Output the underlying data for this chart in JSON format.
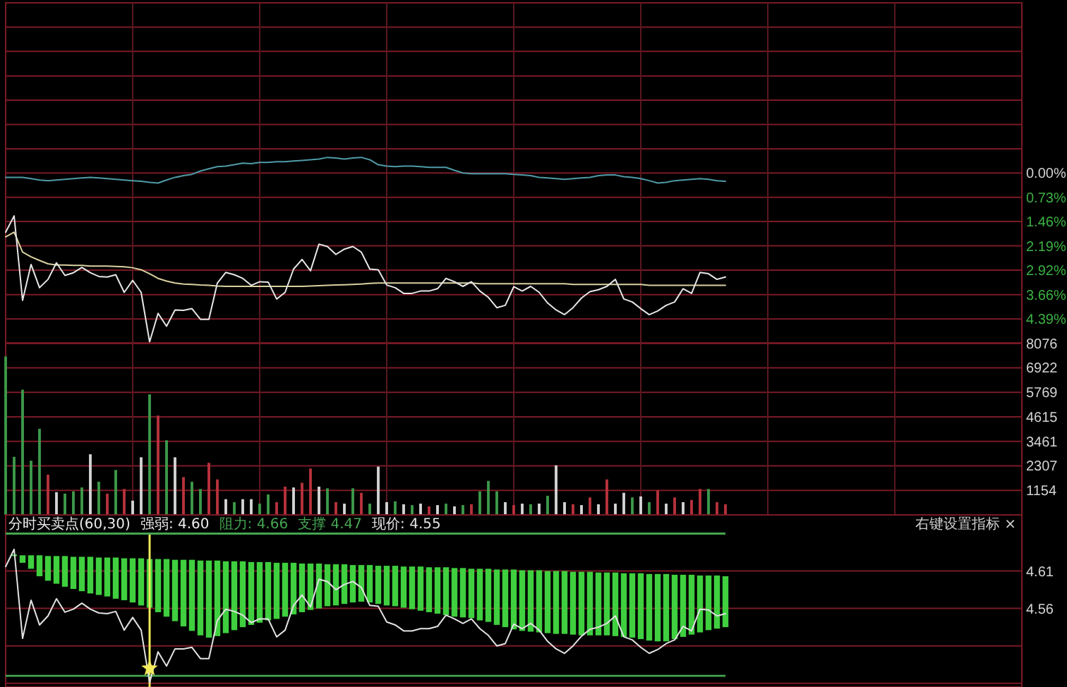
{
  "chart_data": [
    {
      "type": "line",
      "categories": [
        null,
        null,
        null,
        null,
        null,
        null,
        null,
        null,
        null,
        null,
        null,
        null,
        null,
        null,
        null,
        null,
        null,
        null,
        null,
        null,
        null,
        null,
        null,
        null,
        null,
        null,
        null,
        null,
        null,
        null,
        null,
        null,
        null,
        null,
        null,
        null,
        null,
        null,
        null,
        null,
        null,
        null,
        null,
        null,
        null,
        null,
        null,
        null,
        null,
        null,
        null,
        null,
        null,
        null,
        null,
        null,
        null,
        null,
        null,
        null,
        null,
        null,
        null,
        null,
        null,
        null,
        null,
        null,
        null,
        null,
        null,
        null,
        null,
        null,
        null,
        null,
        null,
        null,
        null,
        null,
        null,
        null,
        null,
        null,
        null,
        null,
        null,
        null,
        null,
        null,
        null,
        null,
        null,
        null,
        null,
        null,
        null,
        null,
        null,
        null,
        null,
        null,
        null,
        null,
        null,
        null,
        null,
        null,
        null,
        null,
        null,
        null,
        null,
        null,
        null,
        null,
        null,
        null,
        null,
        null
      ],
      "series": [
        {
          "color": "#4f9ba8",
          "values": [
            -0.13,
            -0.13,
            -0.13,
            -0.17,
            -0.21,
            -0.23,
            -0.21,
            -0.19,
            -0.17,
            -0.15,
            -0.13,
            -0.15,
            -0.17,
            -0.19,
            -0.21,
            -0.23,
            -0.25,
            -0.28,
            -0.3,
            -0.21,
            -0.13,
            -0.08,
            -0.04,
            0.06,
            0.13,
            0.19,
            0.21,
            0.25,
            0.3,
            0.28,
            0.32,
            0.32,
            0.34,
            0.34,
            0.36,
            0.38,
            0.4,
            0.42,
            0.47,
            0.45,
            0.42,
            0.45,
            0.47,
            0.4,
            0.25,
            0.21,
            0.19,
            0.21,
            0.21,
            0.19,
            0.17,
            0.17,
            0.17,
            0.08,
            0,
            -0.02,
            -0.02,
            -0.02,
            -0.02,
            -0.02,
            -0.04,
            -0.06,
            -0.08,
            -0.13,
            -0.15,
            -0.17,
            -0.19,
            -0.17,
            -0.15,
            -0.13,
            -0.08,
            -0.06,
            -0.06,
            -0.11,
            -0.13,
            -0.17,
            -0.23,
            -0.3,
            -0.28,
            -0.23,
            -0.21,
            -0.19,
            -0.17,
            -0.19,
            -0.23,
            -0.25,
            null,
            null,
            null,
            null,
            null,
            null,
            null,
            null,
            null,
            null,
            null,
            null,
            null,
            null,
            null,
            null,
            null,
            null,
            null,
            null,
            null,
            null,
            null,
            null,
            null,
            null,
            null,
            null,
            null,
            null,
            null,
            null,
            null,
            null
          ]
        },
        {
          "color": "#d9d0a0",
          "values": [
            -1.92,
            -1.78,
            -2.38,
            -2.52,
            -2.63,
            -2.73,
            -2.77,
            -2.77,
            -2.78,
            -2.78,
            -2.8,
            -2.8,
            -2.8,
            -2.81,
            -2.82,
            -2.85,
            -2.91,
            -3.03,
            -3.17,
            -3.25,
            -3.31,
            -3.34,
            -3.35,
            -3.37,
            -3.38,
            -3.4,
            -3.41,
            -3.41,
            -3.41,
            -3.41,
            -3.41,
            -3.41,
            -3.41,
            -3.41,
            -3.41,
            -3.41,
            -3.4,
            -3.39,
            -3.38,
            -3.37,
            -3.36,
            -3.35,
            -3.34,
            -3.32,
            -3.31,
            -3.31,
            -3.31,
            -3.31,
            -3.31,
            -3.31,
            -3.31,
            -3.31,
            -3.31,
            -3.31,
            -3.31,
            -3.31,
            -3.33,
            -3.33,
            -3.33,
            -3.33,
            -3.33,
            -3.33,
            -3.33,
            -3.33,
            -3.33,
            -3.33,
            -3.33,
            -3.35,
            -3.35,
            -3.35,
            -3.35,
            -3.35,
            -3.35,
            -3.35,
            -3.35,
            -3.35,
            -3.38,
            -3.38,
            -3.38,
            -3.38,
            -3.38,
            -3.38,
            -3.38,
            -3.38,
            -3.38,
            -3.38,
            null,
            null,
            null,
            null,
            null,
            null,
            null,
            null,
            null,
            null,
            null,
            null,
            null,
            null,
            null,
            null,
            null,
            null,
            null,
            null,
            null,
            null,
            null,
            null,
            null,
            null,
            null,
            null,
            null,
            null,
            null,
            null,
            null,
            null
          ]
        },
        {
          "color": "#e6e6e6",
          "values": [
            -1.78,
            -1.29,
            -3.83,
            -2.75,
            -3.45,
            -3.2,
            -2.7,
            -3.08,
            -3.0,
            -2.84,
            -3.0,
            -3.11,
            -3.13,
            -3.06,
            -3.59,
            -3.23,
            -3.59,
            -5.08,
            -4.22,
            -4.61,
            -4.12,
            -4.13,
            -4.08,
            -4.4,
            -4.4,
            -3.31,
            -2.99,
            -3.06,
            -3.17,
            -3.38,
            -3.27,
            -3.28,
            -3.79,
            -3.59,
            -2.89,
            -2.6,
            -2.94,
            -2.14,
            -2.21,
            -2.45,
            -2.29,
            -2.21,
            -2.38,
            -2.89,
            -2.91,
            -3.37,
            -3.45,
            -3.62,
            -3.62,
            -3.55,
            -3.55,
            -3.48,
            -3.17,
            -3.27,
            -3.41,
            -3.27,
            -3.55,
            -3.74,
            -4.05,
            -3.98,
            -3.42,
            -3.55,
            -3.41,
            -3.59,
            -3.91,
            -4.12,
            -4.26,
            -4.05,
            -3.76,
            -3.57,
            -3.51,
            -3.41,
            -3.2,
            -3.79,
            -3.88,
            -4.08,
            -4.26,
            -4.15,
            -3.98,
            -3.88,
            -3.48,
            -3.62,
            -2.99,
            -3.03,
            -3.2,
            -3.13,
            null,
            null,
            null,
            null,
            null,
            null,
            null,
            null,
            null,
            null,
            null,
            null,
            null,
            null,
            null,
            null,
            null,
            null,
            null,
            null,
            null,
            null,
            null,
            null,
            null,
            null,
            null,
            null,
            null,
            null,
            null,
            null,
            null,
            null
          ]
        }
      ],
      "ylim": [
        -5.12,
        5.12
      ],
      "yticks": [
        {
          "value": 5.12,
          "label": null
        },
        {
          "value": 4.39,
          "label": null
        },
        {
          "value": 3.66,
          "label": null
        },
        {
          "value": 2.92,
          "label": null
        },
        {
          "value": 2.19,
          "label": null
        },
        {
          "value": 1.46,
          "label": null
        },
        {
          "value": 0.73,
          "label": null
        },
        {
          "value": 0,
          "label": "0.00%"
        },
        {
          "value": -0.73,
          "label": "0.73%"
        },
        {
          "value": -1.46,
          "label": "1.46%"
        },
        {
          "value": -2.19,
          "label": "2.19%"
        },
        {
          "value": -2.92,
          "label": "2.92%"
        },
        {
          "value": -3.66,
          "label": "3.66%"
        },
        {
          "value": -4.39,
          "label": "4.39%"
        }
      ],
      "grid": true
    },
    {
      "type": "bar",
      "categories": [
        null,
        null,
        null,
        null,
        null,
        null,
        null,
        null,
        null,
        null,
        null,
        null,
        null,
        null,
        null,
        null,
        null,
        null,
        null,
        null,
        null,
        null,
        null,
        null,
        null,
        null,
        null,
        null,
        null,
        null,
        null,
        null,
        null,
        null,
        null,
        null,
        null,
        null,
        null,
        null,
        null,
        null,
        null,
        null,
        null,
        null,
        null,
        null,
        null,
        null,
        null,
        null,
        null,
        null,
        null,
        null,
        null,
        null,
        null,
        null,
        null,
        null,
        null,
        null,
        null,
        null,
        null,
        null,
        null,
        null,
        null,
        null,
        null,
        null,
        null,
        null,
        null,
        null,
        null,
        null,
        null,
        null,
        null,
        null,
        null,
        null,
        null,
        null,
        null,
        null,
        null,
        null,
        null,
        null,
        null,
        null,
        null,
        null,
        null,
        null,
        null,
        null,
        null,
        null,
        null,
        null,
        null,
        null,
        null,
        null,
        null,
        null,
        null,
        null,
        null,
        null,
        null,
        null,
        null,
        null
      ],
      "values": [
        7450,
        2730,
        5890,
        2550,
        4050,
        1890,
        1070,
        1000,
        1110,
        1290,
        2850,
        1560,
        1000,
        2110,
        1220,
        670,
        2710,
        5670,
        4670,
        3510,
        2710,
        1780,
        1560,
        1220,
        2450,
        1670,
        740,
        600,
        740,
        740,
        530,
        960,
        600,
        1330,
        1290,
        1510,
        2180,
        1330,
        1250,
        600,
        530,
        1250,
        1040,
        530,
        2270,
        600,
        640,
        500,
        460,
        530,
        400,
        460,
        530,
        400,
        460,
        500,
        1110,
        1600,
        1110,
        600,
        460,
        530,
        500,
        530,
        900,
        2330,
        600,
        500,
        460,
        820,
        500,
        1670,
        530,
        1040,
        820,
        870,
        600,
        1150,
        530,
        820,
        600,
        700,
        1220,
        1220,
        600,
        500,
        null,
        null,
        null,
        null,
        null,
        null,
        null,
        null,
        null,
        null,
        null,
        null,
        null,
        null,
        null,
        null,
        null,
        null,
        null,
        null,
        null,
        null,
        null,
        null,
        null,
        null,
        null,
        null,
        null,
        null,
        null,
        null,
        null,
        null
      ],
      "colors": [
        "#3d9a4a",
        "#3d9a4a",
        "#3d9a4a",
        "#3d9a4a",
        "#3d9a4a",
        "#b8323c",
        "#d4d4d4",
        "#3d9a4a",
        "#3d9a4a",
        "#3d9a4a",
        "#d4d4d4",
        "#3d9a4a",
        "#b8323c",
        "#3d9a4a",
        "#b8323c",
        "#d4d4d4",
        "#d4d4d4",
        "#3d9a4a",
        "#b8323c",
        "#3d9a4a",
        "#d4d4d4",
        "#b8323c",
        "#3d9a4a",
        "#3d9a4a",
        "#b8323c",
        "#b8323c",
        "#d4d4d4",
        "#3d9a4a",
        "#d4d4d4",
        "#d4d4d4",
        "#3d9a4a",
        "#3d9a4a",
        "#b8323c",
        "#b8323c",
        "#d4d4d4",
        "#b8323c",
        "#b8323c",
        "#d4d4d4",
        "#3d9a4a",
        "#b8323c",
        "#d4d4d4",
        "#3d9a4a",
        "#b8323c",
        "#3d9a4a",
        "#d4d4d4",
        "#d4d4d4",
        "#3d9a4a",
        "#d4d4d4",
        "#3d9a4a",
        "#d4d4d4",
        "#b8323c",
        "#d4d4d4",
        "#3d9a4a",
        "#d4d4d4",
        "#3d9a4a",
        "#b8323c",
        "#3d9a4a",
        "#3d9a4a",
        "#3d9a4a",
        "#d4d4d4",
        "#b8323c",
        "#d4d4d4",
        "#3d9a4a",
        "#d4d4d4",
        "#3d9a4a",
        "#d4d4d4",
        "#d4d4d4",
        "#b8323c",
        "#d4d4d4",
        "#b8323c",
        "#d4d4d4",
        "#b8323c",
        "#d4d4d4",
        "#d4d4d4",
        "#3d9a4a",
        "#d4d4d4",
        "#3d9a4a",
        "#b8323c",
        "#d4d4d4",
        "#b8323c",
        "#d4d4d4",
        "#b8323c",
        "#b8323c",
        "#3d9a4a",
        "#b8323c",
        "#b8323c",
        null,
        null,
        null,
        null,
        null,
        null,
        null,
        null,
        null,
        null,
        null,
        null,
        null,
        null,
        null,
        null,
        null,
        null,
        null,
        null,
        null,
        null,
        null,
        null,
        null,
        null,
        null,
        null,
        null,
        null,
        null,
        null,
        null,
        null
      ],
      "ylim": [
        0,
        8076
      ],
      "yticks": [
        8076,
        6922,
        5769,
        4615,
        3461,
        2307,
        1154
      ],
      "grid": true
    },
    {
      "type": "bar",
      "title": "分时买卖点(60,30)",
      "subtitle": "右键设置指标 ×",
      "annotations": [
        "强弱: 4.60"
      ],
      "categories": [
        null,
        null,
        null,
        null,
        null,
        null,
        null,
        null,
        null,
        null,
        null,
        null,
        null,
        null,
        null,
        null,
        null,
        null,
        null,
        null,
        null,
        null,
        null,
        null,
        null,
        null,
        null,
        null,
        null,
        null,
        null,
        null,
        null,
        null,
        null,
        null,
        null,
        null,
        null,
        null,
        null,
        null,
        null,
        null,
        null,
        null,
        null,
        null,
        null,
        null,
        null,
        null,
        null,
        null,
        null,
        null,
        null,
        null,
        null,
        null,
        null,
        null,
        null,
        null,
        null,
        null,
        null,
        null,
        null,
        null,
        null,
        null,
        null,
        null,
        null,
        null,
        null,
        null,
        null,
        null,
        null,
        null,
        null,
        null,
        null,
        null,
        null,
        null,
        null,
        null,
        null,
        null,
        null,
        null,
        null,
        null,
        null,
        null,
        null,
        null,
        null,
        null,
        null,
        null,
        null,
        null,
        null,
        null,
        null,
        null,
        null,
        null,
        null,
        null,
        null,
        null,
        null,
        null,
        null,
        null
      ],
      "series": [
        {
          "color": "#3fcf3f",
          "base": [
            null,
            4.63,
            4.621,
            4.613,
            4.603,
            4.597,
            4.593,
            4.589,
            4.586,
            4.583,
            4.58,
            4.578,
            4.576,
            4.573,
            4.571,
            4.568,
            4.564,
            4.561,
            4.555,
            4.549,
            4.543,
            4.536,
            4.53,
            4.524,
            4.521,
            4.523,
            4.527,
            4.531,
            4.535,
            4.538,
            4.541,
            4.544,
            4.546,
            4.549,
            4.552,
            4.555,
            4.558,
            4.56,
            4.563,
            4.564,
            4.566,
            4.568,
            4.569,
            4.568,
            4.566,
            4.564,
            4.563,
            4.561,
            4.559,
            4.557,
            4.555,
            4.553,
            4.551,
            4.549,
            4.548,
            4.547,
            4.544,
            4.542,
            4.538,
            4.535,
            4.532,
            4.53,
            4.529,
            4.528,
            4.527,
            4.526,
            4.526,
            4.525,
            4.524,
            4.524,
            4.524,
            4.524,
            4.523,
            4.522,
            4.521,
            4.519,
            4.517,
            4.516,
            4.516,
            4.519,
            4.522,
            4.525,
            4.528,
            4.531,
            4.533,
            4.535,
            null,
            null,
            null,
            null,
            null,
            null,
            null,
            null,
            null,
            null,
            null,
            null,
            null,
            null,
            null,
            null,
            null,
            null,
            null,
            null,
            null,
            null,
            null,
            null,
            null,
            null,
            null,
            null,
            null,
            null,
            null,
            null,
            null,
            null
          ],
          "values": [
            null,
            0.002,
            0.01,
            0.018,
            0.028,
            0.033,
            0.037,
            0.041,
            0.043,
            0.046,
            0.049,
            0.05,
            0.052,
            0.055,
            0.056,
            0.059,
            0.063,
            0.065,
            0.071,
            0.077,
            0.082,
            0.089,
            0.095,
            0.1,
            0.103,
            0.101,
            0.096,
            0.092,
            0.088,
            0.084,
            0.081,
            0.078,
            0.075,
            0.072,
            0.069,
            0.065,
            0.062,
            0.06,
            0.056,
            0.055,
            0.053,
            0.05,
            0.049,
            0.05,
            0.051,
            0.053,
            0.054,
            0.055,
            0.057,
            0.059,
            0.06,
            0.062,
            0.064,
            0.065,
            0.066,
            0.066,
            0.069,
            0.071,
            0.074,
            0.077,
            0.08,
            0.081,
            0.082,
            0.083,
            0.083,
            0.084,
            0.084,
            0.084,
            0.085,
            0.085,
            0.084,
            0.084,
            0.085,
            0.085,
            0.086,
            0.088,
            0.089,
            0.09,
            0.09,
            0.086,
            0.083,
            0.08,
            0.076,
            0.073,
            0.071,
            0.068,
            null,
            null,
            null,
            null,
            null,
            null,
            null,
            null,
            null,
            null,
            null,
            null,
            null,
            null,
            null,
            null,
            null,
            null,
            null,
            null,
            null,
            null,
            null,
            null,
            null,
            null,
            null,
            null,
            null,
            null,
            null,
            null,
            null,
            null
          ]
        },
        {
          "color": "#f2ea5a",
          "base": [
            null,
            null,
            null,
            null,
            null,
            null,
            null,
            null,
            null,
            null,
            null,
            null,
            null,
            null,
            null,
            null,
            null,
            4.455,
            null,
            null,
            null,
            null,
            null,
            null,
            null,
            null,
            null,
            null,
            null,
            null,
            null,
            null,
            null,
            null,
            null,
            null,
            null,
            null,
            null,
            null,
            null,
            null,
            null,
            null,
            null,
            null,
            null,
            null,
            null,
            null,
            null,
            null,
            null,
            null,
            null,
            null,
            null,
            null,
            null,
            null,
            null,
            null,
            null,
            null,
            null,
            null,
            null,
            null,
            null,
            null,
            null,
            null,
            null,
            null,
            null,
            null,
            null,
            null,
            null,
            null,
            null,
            null,
            null,
            null,
            null,
            null,
            null,
            null,
            null,
            null,
            null,
            null,
            null,
            null,
            null,
            null,
            null,
            null,
            null,
            null,
            null,
            null,
            null,
            null,
            null,
            null,
            null,
            null,
            null,
            null,
            null,
            null,
            null,
            null,
            null,
            null,
            null,
            null,
            null,
            null
          ],
          "values": [
            null,
            null,
            null,
            null,
            null,
            null,
            null,
            null,
            null,
            null,
            null,
            null,
            null,
            null,
            null,
            null,
            null,
            0.205,
            null,
            null,
            null,
            null,
            null,
            null,
            null,
            null,
            null,
            null,
            null,
            null,
            null,
            null,
            null,
            null,
            null,
            null,
            null,
            null,
            null,
            null,
            null,
            null,
            null,
            null,
            null,
            null,
            null,
            null,
            null,
            null,
            null,
            null,
            null,
            null,
            null,
            null,
            null,
            null,
            null,
            null,
            null,
            null,
            null,
            null,
            null,
            null,
            null,
            null,
            null,
            null,
            null,
            null,
            null,
            null,
            null,
            null,
            null,
            null,
            null,
            null,
            null,
            null,
            null,
            null,
            null,
            null,
            null,
            null,
            null,
            null,
            null,
            null,
            null,
            null,
            null,
            null,
            null,
            null,
            null,
            null,
            null,
            null,
            null,
            null,
            null,
            null,
            null,
            null,
            null,
            null,
            null,
            null,
            null,
            null,
            null,
            null,
            null,
            null,
            null,
            null
          ]
        },
        {
          "type": "line",
          "name": "现价: 4.55",
          "color": "#e2e2e2",
          "values": [
            4.616,
            4.639,
            4.52,
            4.571,
            4.538,
            4.55,
            4.573,
            4.555,
            4.559,
            4.567,
            4.559,
            4.554,
            4.553,
            4.556,
            4.531,
            4.548,
            4.531,
            4.461,
            4.502,
            4.483,
            4.506,
            4.506,
            4.508,
            4.493,
            4.493,
            4.544,
            4.559,
            4.556,
            4.551,
            4.541,
            4.546,
            4.546,
            4.522,
            4.531,
            4.564,
            4.578,
            4.562,
            4.599,
            4.596,
            4.585,
            4.592,
            4.596,
            4.588,
            4.564,
            4.563,
            4.542,
            4.538,
            4.53,
            4.53,
            4.533,
            4.533,
            4.536,
            4.551,
            4.546,
            4.54,
            4.546,
            4.533,
            4.524,
            4.51,
            4.513,
            4.539,
            4.533,
            4.54,
            4.531,
            4.516,
            4.506,
            4.5,
            4.51,
            4.523,
            4.532,
            4.535,
            4.54,
            4.55,
            4.522,
            4.518,
            4.508,
            4.5,
            4.505,
            4.513,
            4.518,
            4.536,
            4.53,
            4.559,
            4.558,
            4.55,
            4.553,
            null,
            null,
            null,
            null,
            null,
            null,
            null,
            null,
            null,
            null,
            null,
            null,
            null,
            null,
            null,
            null,
            null,
            null,
            null,
            null,
            null,
            null,
            null,
            null,
            null,
            null,
            null,
            null,
            null,
            null,
            null,
            null,
            null,
            null
          ]
        },
        {
          "type": "scatter",
          "marker": "star",
          "color": "#f2ea5a",
          "values": [
            null,
            null,
            null,
            null,
            null,
            null,
            null,
            null,
            null,
            null,
            null,
            null,
            null,
            null,
            null,
            null,
            null,
            4.48,
            null,
            null,
            null,
            null,
            null,
            null,
            null,
            null,
            null,
            null,
            null,
            null,
            null,
            null,
            null,
            null,
            null,
            null,
            null,
            null,
            null,
            null,
            null,
            null,
            null,
            null,
            null,
            null,
            null,
            null,
            null,
            null,
            null,
            null,
            null,
            null,
            null,
            null,
            null,
            null,
            null,
            null,
            null,
            null,
            null,
            null,
            null,
            null,
            null,
            null,
            null,
            null,
            null,
            null,
            null,
            null,
            null,
            null,
            null,
            null,
            null,
            null,
            null,
            null,
            null,
            null,
            null,
            null,
            null,
            null,
            null,
            null,
            null,
            null,
            null,
            null,
            null,
            null,
            null,
            null,
            null,
            null,
            null,
            null,
            null,
            null,
            null,
            null,
            null,
            null,
            null,
            null,
            null,
            null,
            null,
            null,
            null,
            null,
            null,
            null,
            null,
            null
          ]
        }
      ],
      "ylim": [
        4.455,
        4.685
      ],
      "yticks": [
        4.61,
        4.56,
        {
          "value": 4.51,
          "label": null
        },
        {
          "value": 4.46,
          "label": null
        }
      ],
      "grid": "y",
      "ref_lines": [
        {
          "axis": "y",
          "value": 4.66,
          "label": "阻力: 4.66",
          "color": "#45a552"
        },
        {
          "axis": "y",
          "value": 4.47,
          "label": "支撑 4.47",
          "color": "#45a552"
        }
      ]
    }
  ]
}
